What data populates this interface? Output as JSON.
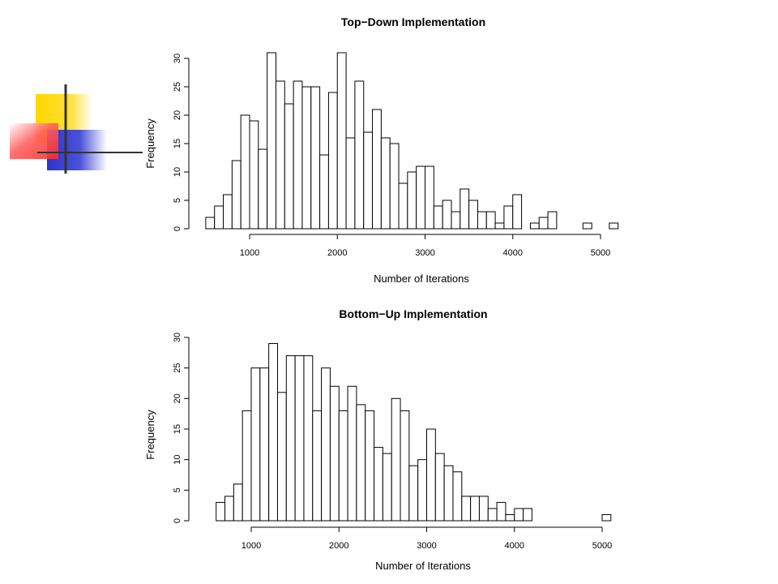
{
  "slide": {
    "decoration": {
      "colors": [
        "#ffd700",
        "#ff3b3b",
        "#2b35cc",
        "#333333"
      ]
    }
  },
  "chart_data": [
    {
      "type": "bar",
      "title": "Top−Down Implementation",
      "xlabel": "Number of Iterations",
      "ylabel": "Frequency",
      "bin_width": 100,
      "bin_starts": [
        500,
        600,
        700,
        800,
        900,
        1000,
        1100,
        1200,
        1300,
        1400,
        1500,
        1600,
        1700,
        1800,
        1900,
        2000,
        2100,
        2200,
        2300,
        2400,
        2500,
        2600,
        2700,
        2800,
        2900,
        3000,
        3100,
        3200,
        3300,
        3400,
        3500,
        3600,
        3700,
        3800,
        3900,
        4000,
        4100,
        4200,
        4300,
        4400,
        4500,
        4600,
        4700,
        4800,
        4900,
        5000,
        5100
      ],
      "values": [
        2,
        4,
        6,
        12,
        20,
        19,
        14,
        31,
        26,
        22,
        26,
        25,
        25,
        13,
        24,
        31,
        16,
        26,
        17,
        21,
        16,
        15,
        8,
        10,
        11,
        11,
        4,
        5,
        3,
        7,
        5,
        3,
        3,
        1,
        4,
        6,
        0,
        1,
        2,
        3,
        0,
        0,
        0,
        1,
        0,
        0,
        1
      ],
      "xlim": [
        500,
        5200
      ],
      "ylim": [
        0,
        30
      ],
      "x_ticks": [
        1000,
        2000,
        3000,
        4000,
        5000
      ],
      "y_ticks": [
        0,
        5,
        10,
        15,
        20,
        25,
        30
      ],
      "grid": false
    },
    {
      "type": "bar",
      "title": "Bottom−Up Implementation",
      "xlabel": "Number of Iterations",
      "ylabel": "Frequency",
      "bin_width": 100,
      "bin_starts": [
        600,
        700,
        800,
        900,
        1000,
        1100,
        1200,
        1300,
        1400,
        1500,
        1600,
        1700,
        1800,
        1900,
        2000,
        2100,
        2200,
        2300,
        2400,
        2500,
        2600,
        2700,
        2800,
        2900,
        3000,
        3100,
        3200,
        3300,
        3400,
        3500,
        3600,
        3700,
        3800,
        3900,
        4000,
        4100,
        4200,
        4300,
        4400,
        4500,
        4600,
        4700,
        4800,
        4900,
        5000
      ],
      "values": [
        3,
        4,
        6,
        18,
        25,
        25,
        29,
        21,
        27,
        27,
        27,
        18,
        25,
        22,
        18,
        22,
        19,
        18,
        12,
        11,
        20,
        18,
        9,
        10,
        15,
        11,
        9,
        8,
        4,
        4,
        4,
        2,
        3,
        1,
        2,
        2,
        0,
        0,
        0,
        0,
        0,
        0,
        0,
        0,
        1
      ],
      "xlim": [
        500,
        5200
      ],
      "ylim": [
        0,
        30
      ],
      "x_ticks": [
        1000,
        2000,
        3000,
        4000,
        5000
      ],
      "y_ticks": [
        0,
        5,
        10,
        15,
        20,
        25,
        30
      ],
      "grid": false
    }
  ]
}
